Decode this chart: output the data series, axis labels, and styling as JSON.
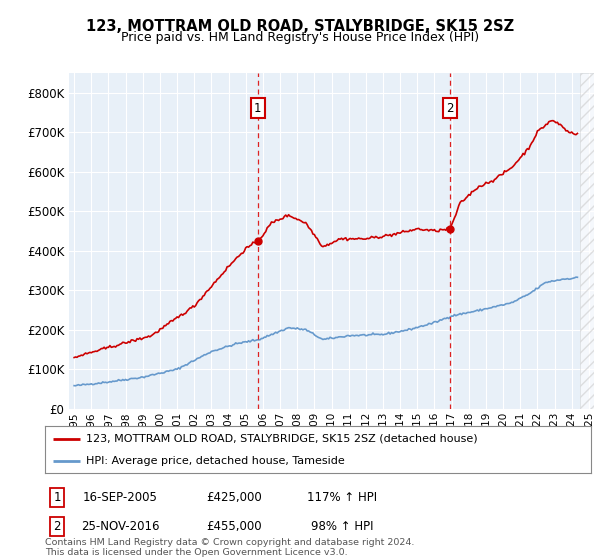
{
  "title1": "123, MOTTRAM OLD ROAD, STALYBRIDGE, SK15 2SZ",
  "title2": "Price paid vs. HM Land Registry's House Price Index (HPI)",
  "legend_line1": "123, MOTTRAM OLD ROAD, STALYBRIDGE, SK15 2SZ (detached house)",
  "legend_line2": "HPI: Average price, detached house, Tameside",
  "footnote": "Contains HM Land Registry data © Crown copyright and database right 2024.\nThis data is licensed under the Open Government Licence v3.0.",
  "sale1_date": "16-SEP-2005",
  "sale1_price": 425000,
  "sale1_hpi": "117% ↑ HPI",
  "sale2_date": "25-NOV-2016",
  "sale2_price": 455000,
  "sale2_hpi": "98% ↑ HPI",
  "hpi_color": "#6699cc",
  "price_color": "#cc0000",
  "sale_line_color": "#dd2222",
  "background_chart": "#e8f0f8",
  "background_fig": "#ffffff",
  "ylim": [
    0,
    850000
  ],
  "yticks": [
    0,
    100000,
    200000,
    300000,
    400000,
    500000,
    600000,
    700000,
    800000
  ],
  "xlim_start": 1994.7,
  "xlim_end": 2025.3,
  "hpi_key_years": [
    1995.0,
    1997.0,
    1999.0,
    2001.0,
    2003.0,
    2004.5,
    2005.75,
    2007.5,
    2008.5,
    2009.5,
    2011.0,
    2013.0,
    2014.5,
    2016.0,
    2017.0,
    2018.5,
    2019.5,
    2020.5,
    2021.5,
    2022.5,
    2023.5,
    2024.4
  ],
  "hpi_key_vals": [
    58000,
    68000,
    80000,
    100000,
    145000,
    165000,
    175000,
    205000,
    200000,
    175000,
    185000,
    188000,
    200000,
    218000,
    235000,
    248000,
    258000,
    268000,
    290000,
    320000,
    328000,
    332000
  ],
  "price_key_years": [
    1995.0,
    1997.0,
    1999.5,
    2002.0,
    2004.0,
    2005.0,
    2005.75,
    2006.5,
    2007.5,
    2008.5,
    2009.5,
    2010.5,
    2012.0,
    2013.5,
    2015.0,
    2016.0,
    2016.92,
    2017.5,
    2018.5,
    2019.5,
    2020.5,
    2021.5,
    2022.0,
    2022.8,
    2023.3,
    2023.8,
    2024.4
  ],
  "price_key_vals": [
    130000,
    155000,
    185000,
    260000,
    360000,
    405000,
    425000,
    470000,
    490000,
    470000,
    410000,
    430000,
    430000,
    440000,
    455000,
    450000,
    455000,
    520000,
    560000,
    580000,
    610000,
    660000,
    700000,
    730000,
    720000,
    700000,
    695000
  ]
}
